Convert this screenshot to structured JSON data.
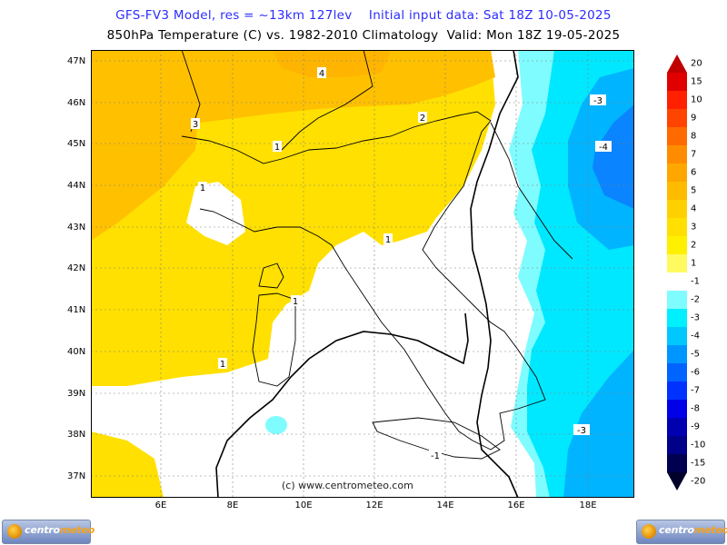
{
  "header": {
    "line1": "GFS-FV3 Model, res = ~13km 127lev    Initial input data: Sat 18Z 10-05-2025",
    "line2": "850hPa Temperature (C) vs. 1982-2010 Climatology  Valid: Mon 18Z 19-05-2025"
  },
  "map": {
    "latitude_labels": [
      "47N",
      "46N",
      "45N",
      "44N",
      "43N",
      "42N",
      "41N",
      "40N",
      "39N",
      "38N",
      "37N"
    ],
    "longitude_labels": [
      "6E",
      "8E",
      "10E",
      "12E",
      "14E",
      "16E",
      "18E"
    ],
    "contour_labels": [
      "4",
      "3",
      "2",
      "1",
      "1",
      "1",
      "1",
      "1",
      "-1",
      "-3",
      "-4",
      "-3"
    ],
    "watermark": "(c) www.centrometeo.com",
    "colors": {
      "very_warm": "#ffc000",
      "warm": "#ffe000",
      "neutral": "#ffffff",
      "cool_1": "#7ffcff",
      "cool_2": "#00e8ff",
      "cool_3": "#00b4ff",
      "cool_4": "#0a84ff",
      "coast": "#000000",
      "contour": "#000000",
      "gridline": "#808080"
    }
  },
  "legend": {
    "labels": [
      "20",
      "15",
      "10",
      "9",
      "8",
      "7",
      "6",
      "5",
      "4",
      "3",
      "2",
      "1",
      "-1",
      "-2",
      "-3",
      "-4",
      "-5",
      "-6",
      "-7",
      "-8",
      "-9",
      "-10",
      "-15",
      "-20"
    ],
    "colors": [
      "#c00000",
      "#e00000",
      "#ff2000",
      "#ff4400",
      "#ff6a00",
      "#ff8c00",
      "#ffa600",
      "#ffbb00",
      "#ffd000",
      "#ffe000",
      "#fff000",
      "#fffa60",
      "#ffffff",
      "#7ffcff",
      "#00f0ff",
      "#00c8ff",
      "#0096ff",
      "#0064ff",
      "#0032ff",
      "#0000e8",
      "#0000b0",
      "#000088",
      "#000050",
      "#00002a"
    ]
  },
  "logos": {
    "brand_a": "centro",
    "brand_b": "meteo"
  }
}
